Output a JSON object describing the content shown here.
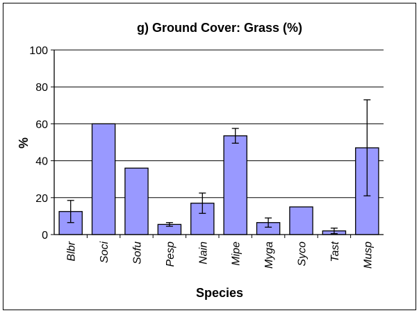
{
  "chart_data": {
    "type": "bar",
    "title": "g) Ground Cover: Grass (%)",
    "xlabel": "Species",
    "ylabel": "%",
    "ylim": [
      0,
      100
    ],
    "yticks": [
      0,
      20,
      40,
      60,
      80,
      100
    ],
    "grid": true,
    "categories": [
      "Blbr",
      "Soci",
      "Sofu",
      "Pesp",
      "Nain",
      "Mipe",
      "Myga",
      "Syco",
      "Tast",
      "Musp"
    ],
    "values": [
      12.5,
      60,
      36,
      5.5,
      17,
      53.5,
      6.5,
      15,
      2,
      47
    ],
    "errors": [
      6,
      0,
      0,
      1,
      5.5,
      4,
      2.5,
      0,
      1.5,
      26
    ],
    "bar_color": "#9999ff"
  }
}
